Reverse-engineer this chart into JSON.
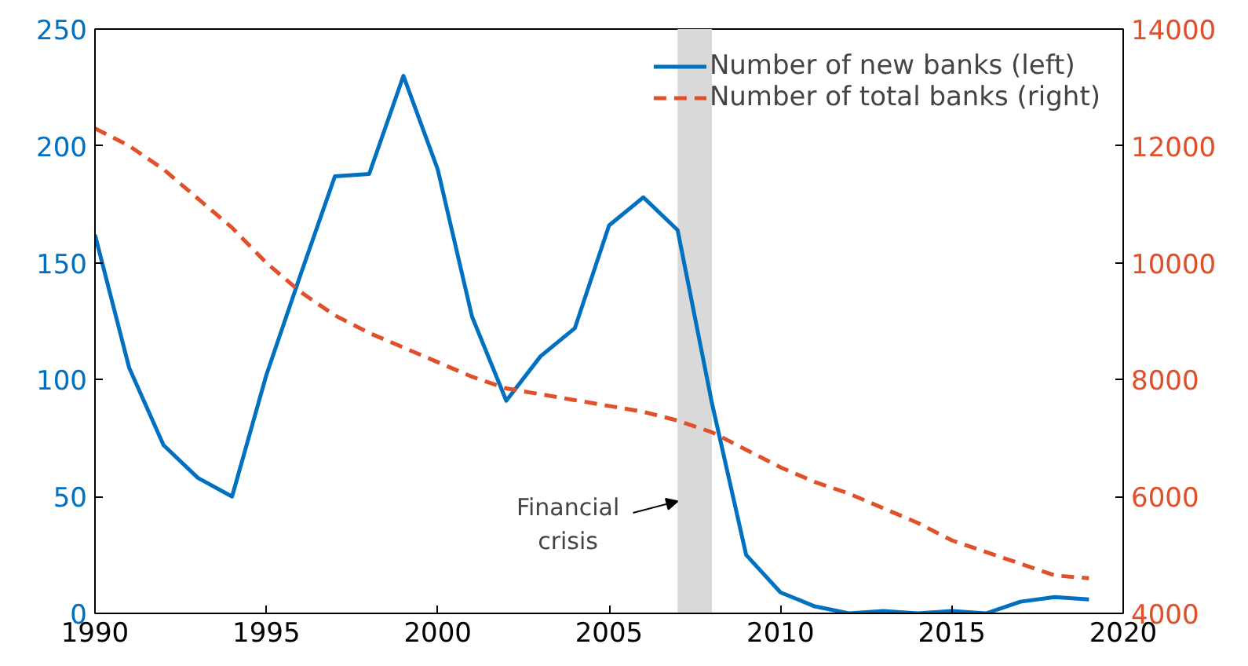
{
  "chart_data": {
    "type": "line",
    "x": [
      1990,
      1991,
      1992,
      1993,
      1994,
      1995,
      1996,
      1997,
      1998,
      1999,
      2000,
      2001,
      2002,
      2003,
      2004,
      2005,
      2006,
      2007,
      2008,
      2009,
      2010,
      2011,
      2012,
      2013,
      2014,
      2015,
      2016,
      2017,
      2018,
      2019
    ],
    "series": [
      {
        "name": "Number of new banks (left)",
        "color": "#0070c0",
        "line_style": "solid",
        "values": [
          162,
          105,
          72,
          58,
          50,
          102,
          145,
          187,
          188,
          230,
          190,
          127,
          91,
          110,
          122,
          166,
          178,
          164,
          90,
          25,
          9,
          3,
          0,
          1,
          0,
          1,
          0,
          5,
          7,
          6
        ]
      },
      {
        "name": "Number of total banks (right)",
        "color": "#e0502a",
        "line_style": "dashed",
        "axis": "y2",
        "values": [
          12300,
          12000,
          11600,
          11100,
          10600,
          10000,
          9500,
          9100,
          8800,
          8550,
          8300,
          8050,
          7850,
          7750,
          7650,
          7550,
          7450,
          7300,
          7100,
          6800,
          6500,
          6250,
          6050,
          5800,
          5550,
          5250,
          5050,
          4850,
          4650,
          4600
        ]
      }
    ],
    "xlim": [
      1990,
      2020
    ],
    "xticks": [
      1990,
      1995,
      2000,
      2005,
      2010,
      2015,
      2020
    ],
    "ylim": [
      0,
      250
    ],
    "yticks": [
      0,
      50,
      100,
      150,
      200,
      250
    ],
    "y2lim": [
      4000,
      14000
    ],
    "y2ticks": [
      4000,
      6000,
      8000,
      10000,
      12000,
      14000
    ],
    "bands": [
      {
        "axis": "x",
        "from": 2007,
        "to": 2008,
        "color": "#d9d9d9"
      }
    ],
    "annotations": [
      {
        "text": "Financial\ncrisis",
        "x": 2007,
        "y": 48
      }
    ],
    "legend": "top right",
    "grid": false
  }
}
